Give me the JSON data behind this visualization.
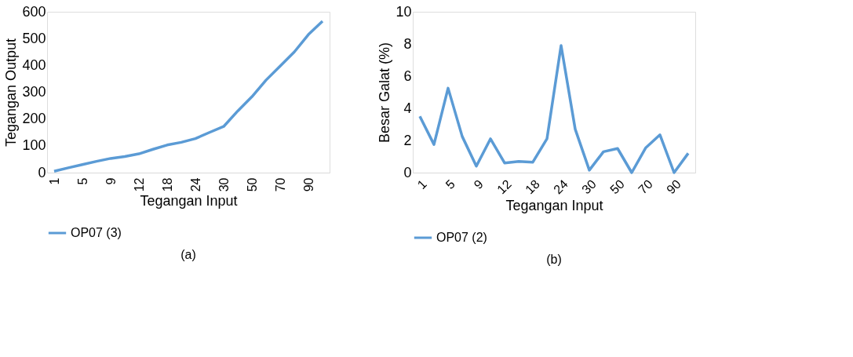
{
  "chart_data": [
    {
      "type": "line",
      "xlabel": "Tegangan Input",
      "ylabel": "Tegangan Output",
      "annotations": [
        "(a)"
      ],
      "categories": [
        "1",
        null,
        "5",
        null,
        "9",
        null,
        "12",
        null,
        "18",
        null,
        "24",
        null,
        "30",
        null,
        "50",
        null,
        "70",
        null,
        "90",
        null
      ],
      "ylim": [
        0,
        600
      ],
      "yticks": [
        0,
        100,
        200,
        300,
        400,
        500,
        600
      ],
      "grid": false,
      "legend": "bottom",
      "line_style": "solid",
      "marker": "none",
      "series": [
        {
          "name": "OP07 (3)",
          "color": "#5b9bd5",
          "values": [
            5,
            18,
            30,
            42,
            53,
            60,
            70,
            87,
            103,
            113,
            127,
            150,
            172,
            230,
            283,
            345,
            397,
            450,
            515,
            565
          ]
        }
      ]
    },
    {
      "type": "line",
      "xlabel": "Tegangan Input",
      "ylabel": "Besar Galat (%)",
      "annotations": [
        "(b)"
      ],
      "categories": [
        "1",
        null,
        "5",
        null,
        "9",
        null,
        "12",
        null,
        "18",
        null,
        "24",
        null,
        "30",
        null,
        "50",
        null,
        "70",
        null,
        "90",
        null
      ],
      "ylim": [
        0,
        10
      ],
      "yticks": [
        0,
        2,
        4,
        6,
        8,
        10
      ],
      "grid": false,
      "legend": "bottom",
      "line_style": "solid",
      "marker": "none",
      "series": [
        {
          "name": "OP07 (2)",
          "color": "#5b9bd5",
          "values": [
            3.5,
            1.75,
            5.25,
            2.25,
            0.4,
            2.1,
            0.6,
            0.7,
            0.65,
            2.1,
            7.9,
            2.7,
            0.15,
            1.3,
            1.5,
            0,
            1.55,
            2.35,
            0,
            1.2
          ]
        }
      ]
    }
  ]
}
